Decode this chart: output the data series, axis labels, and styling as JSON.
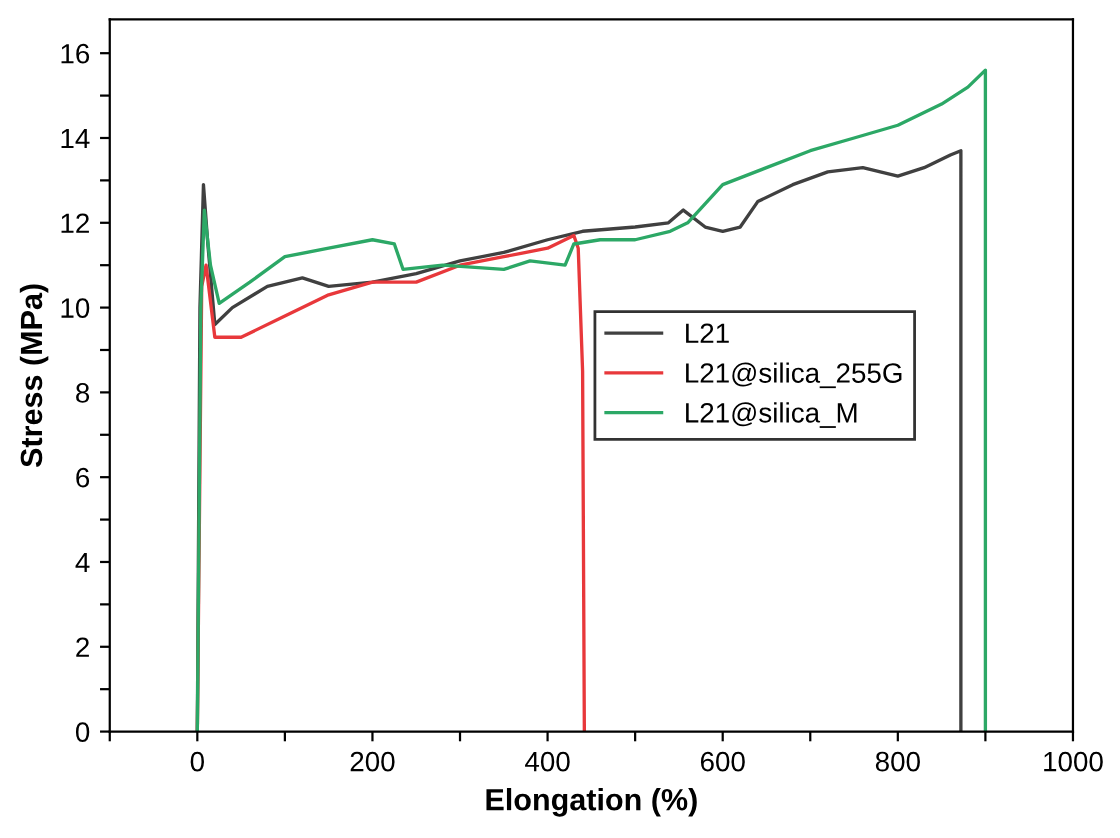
{
  "chart_data": {
    "type": "line",
    "xlabel": "Elongation (%)",
    "ylabel": "Stress (MPa)",
    "xlim": [
      -100,
      1000
    ],
    "ylim": [
      0,
      16.8
    ],
    "xticks": [
      {
        "value": -100,
        "label": null
      },
      0,
      {
        "value": 100,
        "label": null
      },
      200,
      {
        "value": 300,
        "label": null
      },
      400,
      {
        "value": 500,
        "label": null
      },
      600,
      {
        "value": 700,
        "label": null
      },
      800,
      {
        "value": 900,
        "label": null
      },
      1000
    ],
    "yticks": [
      0,
      {
        "value": 1,
        "label": null
      },
      2,
      {
        "value": 3,
        "label": null
      },
      4,
      {
        "value": 5,
        "label": null
      },
      6,
      {
        "value": 7,
        "label": null
      },
      8,
      {
        "value": 9,
        "label": null
      },
      10,
      {
        "value": 11,
        "label": null
      },
      12,
      {
        "value": 13,
        "label": null
      },
      14,
      {
        "value": 15,
        "label": null
      },
      16
    ],
    "grid": false,
    "legend": "right",
    "marker": "none",
    "line_style": "solid",
    "series": [
      {
        "name": "L21",
        "color": "#404040",
        "x": [
          0,
          3,
          7,
          12,
          20,
          40,
          80,
          120,
          150,
          200,
          250,
          300,
          350,
          400,
          440,
          500,
          538,
          555,
          580,
          600,
          620,
          640,
          680,
          720,
          760,
          800,
          830,
          860,
          872,
          872
        ],
        "values": [
          0,
          10,
          12.9,
          11.5,
          9.6,
          10,
          10.5,
          10.7,
          10.5,
          10.6,
          10.8,
          11.1,
          11.3,
          11.6,
          11.8,
          11.9,
          12.0,
          12.3,
          11.9,
          11.8,
          11.9,
          12.5,
          12.9,
          13.2,
          13.3,
          13.1,
          13.3,
          13.6,
          13.7,
          0
        ]
      },
      {
        "name": "L21@silica_255G",
        "color": "#e8383b",
        "x": [
          0,
          5,
          10,
          20,
          50,
          100,
          150,
          200,
          250,
          300,
          350,
          400,
          430,
          435,
          440,
          442
        ],
        "values": [
          0,
          10.5,
          11,
          9.3,
          9.3,
          9.8,
          10.3,
          10.6,
          10.6,
          11.0,
          11.2,
          11.4,
          11.7,
          11.4,
          8.5,
          0
        ]
      },
      {
        "name": "L21@silica_M",
        "color": "#2ca866",
        "x": [
          0,
          4,
          8,
          15,
          25,
          60,
          100,
          150,
          200,
          225,
          235,
          280,
          350,
          380,
          420,
          430,
          460,
          500,
          540,
          560,
          600,
          650,
          700,
          750,
          800,
          850,
          880,
          900,
          900
        ],
        "values": [
          0,
          10,
          12.3,
          11,
          10.1,
          10.6,
          11.2,
          11.4,
          11.6,
          11.5,
          10.9,
          11.0,
          10.9,
          11.1,
          11.0,
          11.5,
          11.6,
          11.6,
          11.8,
          12.0,
          12.9,
          13.3,
          13.7,
          14.0,
          14.3,
          14.8,
          15.2,
          15.6,
          0
        ]
      }
    ]
  }
}
